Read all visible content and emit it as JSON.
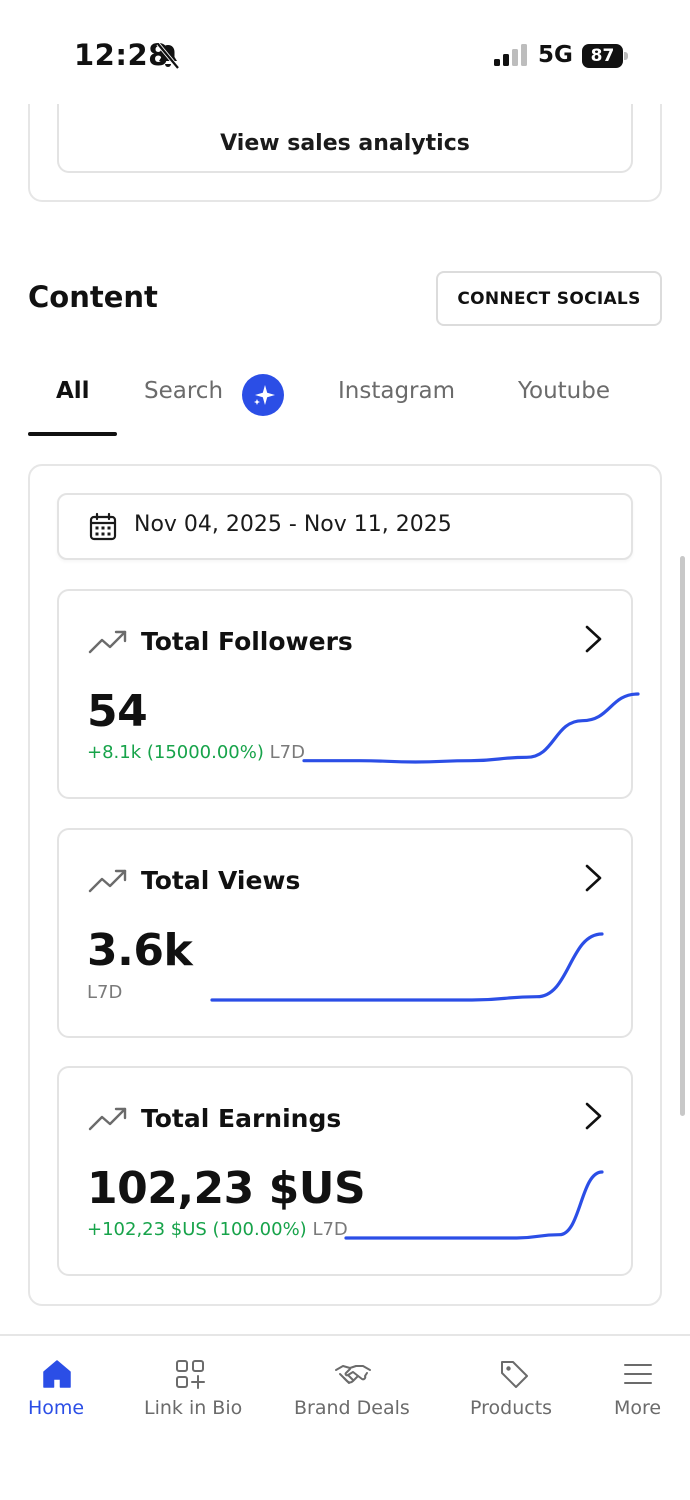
{
  "status_bar": {
    "time": "12:28",
    "network": "5G",
    "battery": "87"
  },
  "sales": {
    "view_analytics_label": "View sales analytics"
  },
  "content": {
    "title": "Content",
    "connect_socials_label": "CONNECT SOCIALS",
    "tabs": [
      {
        "label": "All",
        "active": true
      },
      {
        "label": "Search",
        "active": false
      },
      {
        "label": "Instagram",
        "active": false
      },
      {
        "label": "Youtube",
        "active": false
      }
    ],
    "date_range": "Nov 04, 2025 - Nov 11, 2025",
    "metrics": [
      {
        "title": "Total Followers",
        "value": "54",
        "change": "+8.1k (15000.00%)",
        "period": "L7D",
        "trend": [
          0.0,
          0.0,
          -0.02,
          0.0,
          0.05,
          0.6,
          1.0
        ]
      },
      {
        "title": "Total Views",
        "value": "3.6k",
        "change": "",
        "period": "L7D",
        "trend": [
          0.0,
          0.0,
          0.0,
          0.0,
          0.0,
          0.05,
          1.0
        ]
      },
      {
        "title": "Total Earnings",
        "value": "102,23 $US",
        "change": "+102,23 $US (100.00%)",
        "period": "L7D",
        "trend": [
          0.0,
          0.0,
          0.0,
          0.0,
          0.0,
          0.05,
          1.0
        ]
      }
    ]
  },
  "nav": {
    "items": [
      {
        "label": "Home",
        "icon": "home-icon",
        "active": true
      },
      {
        "label": "Link in Bio",
        "icon": "grid-plus-icon",
        "active": false
      },
      {
        "label": "Brand Deals",
        "icon": "handshake-icon",
        "active": false
      },
      {
        "label": "Products",
        "icon": "tag-icon",
        "active": false
      },
      {
        "label": "More",
        "icon": "menu-icon",
        "active": false
      }
    ]
  },
  "colors": {
    "accent": "#2b4ee6",
    "positive": "#17a34a",
    "sparkline": "#2b4ee6"
  }
}
